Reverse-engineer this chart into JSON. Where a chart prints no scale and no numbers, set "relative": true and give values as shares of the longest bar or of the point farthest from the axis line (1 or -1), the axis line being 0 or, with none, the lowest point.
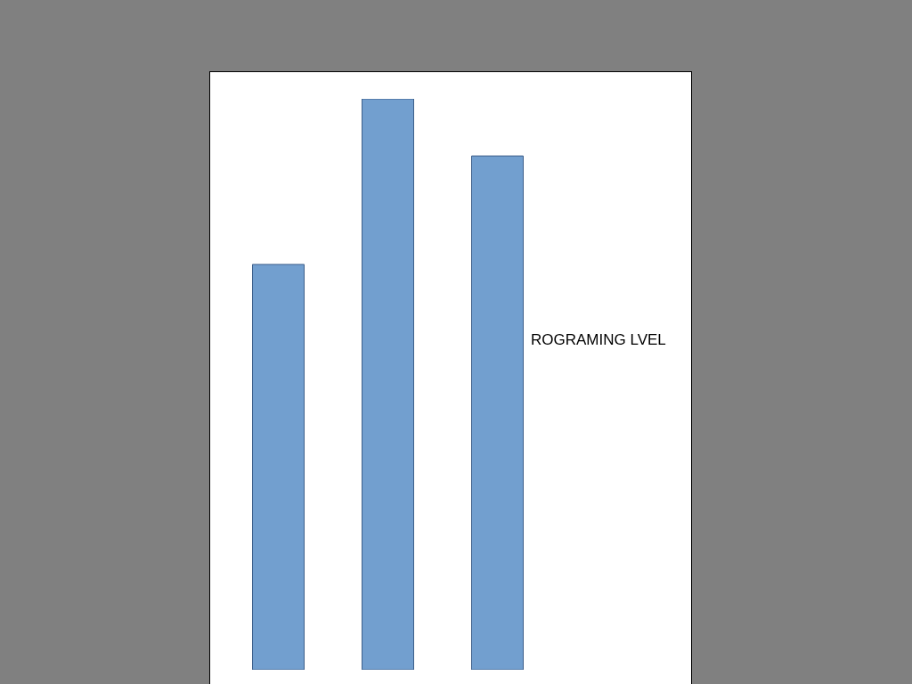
{
  "chart_data": {
    "type": "bar",
    "categories": [
      null,
      null,
      null
    ],
    "values": [
      0.71,
      1,
      0.9
    ],
    "color": "#729fcf",
    "relative": true,
    "annotations": [
      "ROGRAMING LVEL"
    ]
  }
}
